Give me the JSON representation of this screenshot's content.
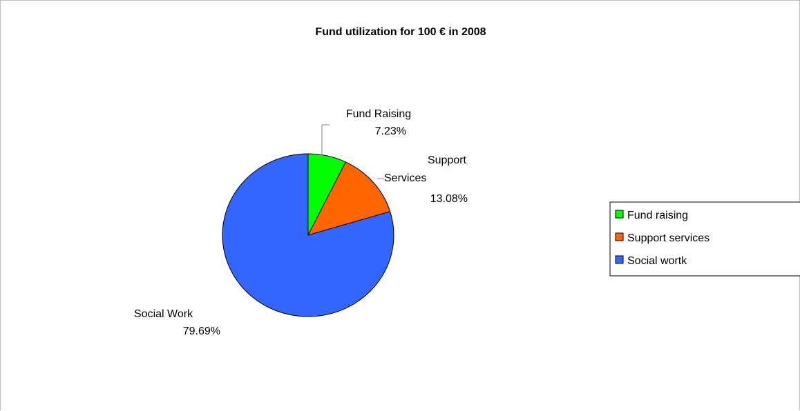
{
  "chart_data": {
    "type": "pie",
    "title": "Fund utilization for 100 € in 2008",
    "slices": [
      {
        "label_line1": "Fund Raising",
        "label_line2": "7.23%",
        "value": 7.23,
        "color": "#00ff00"
      },
      {
        "label_line1": "Support",
        "label_line2": "Services",
        "label_line3": "13.08%",
        "value": 13.08,
        "color": "#ff6600"
      },
      {
        "label_line1": "Social Work",
        "label_line2": "79.69%",
        "value": 79.69,
        "color": "#3366ff"
      }
    ],
    "legend": {
      "placement": "right",
      "entries": [
        {
          "label": "Fund raising",
          "color": "#00ff00"
        },
        {
          "label": "Support services",
          "color": "#ff6600"
        },
        {
          "label": "Social wortk",
          "color": "#3366ff"
        }
      ]
    }
  }
}
